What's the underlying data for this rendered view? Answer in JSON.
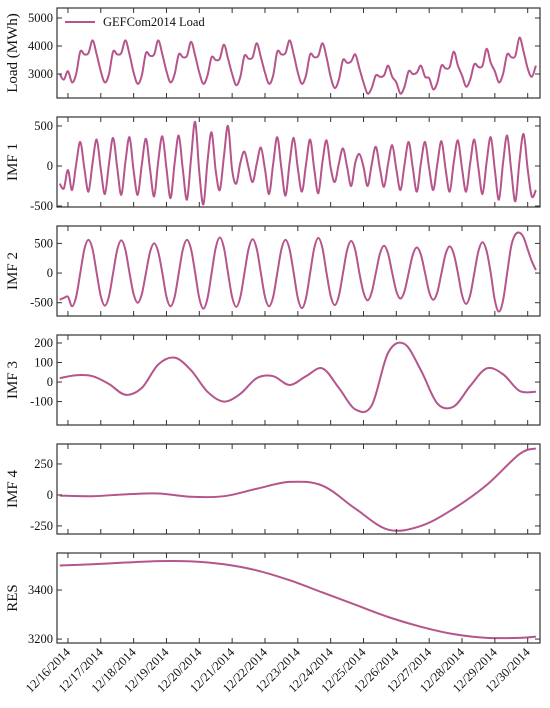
{
  "chart_data": [
    {
      "type": "line",
      "ylabel": "Load (MWh)",
      "legend": "upper left",
      "x": [
        -6,
        -3,
        0,
        3,
        6,
        9,
        12,
        15,
        18,
        21,
        24,
        27,
        30,
        33,
        36,
        39,
        42,
        45,
        48,
        51,
        54,
        57,
        60,
        63,
        66,
        69,
        72,
        75,
        78,
        81,
        84,
        87,
        90,
        93,
        96,
        99,
        102,
        105,
        108,
        111,
        114,
        117,
        120,
        123,
        126,
        129,
        132,
        135,
        138,
        141,
        144,
        147,
        150,
        153,
        156,
        159,
        162,
        165,
        168,
        171,
        174,
        177,
        180,
        183,
        186,
        189,
        192,
        195,
        198,
        201,
        204,
        207,
        210,
        213,
        216,
        219,
        222,
        225,
        228,
        231,
        234,
        237,
        240,
        243,
        246,
        249,
        252,
        255,
        258,
        261,
        264,
        267,
        270,
        273,
        276,
        279,
        282,
        285,
        288,
        291,
        294,
        297,
        300,
        303,
        306,
        309,
        312,
        315,
        318,
        321,
        324,
        327,
        330,
        333,
        336,
        339,
        342
      ],
      "series": [
        {
          "name": "GEFCom2014 Load",
          "color": "#b5558c",
          "values": [
            3000,
            2800,
            3100,
            2700,
            3000,
            3800,
            3700,
            3750,
            4200,
            3700,
            3100,
            2700,
            3000,
            3800,
            3700,
            3750,
            4200,
            3700,
            3050,
            2650,
            2950,
            3750,
            3650,
            3700,
            4200,
            3700,
            3100,
            2700,
            3000,
            3700,
            3600,
            3650,
            4150,
            3650,
            3050,
            2650,
            2950,
            3600,
            3500,
            3550,
            4050,
            3550,
            3000,
            2600,
            2900,
            3650,
            3550,
            3600,
            4100,
            3600,
            3050,
            2650,
            2950,
            3800,
            3700,
            3750,
            4200,
            3700,
            3050,
            2650,
            2950,
            3700,
            3600,
            3650,
            4100,
            3600,
            2900,
            2500,
            2800,
            3500,
            3400,
            3450,
            3700,
            3200,
            2700,
            2300,
            2500,
            2950,
            2900,
            2950,
            3300,
            2900,
            2700,
            2300,
            2550,
            3100,
            3000,
            3050,
            3300,
            2900,
            2850,
            2450,
            2700,
            3300,
            3200,
            3250,
            3800,
            3300,
            2950,
            2550,
            2800,
            3350,
            3250,
            3300,
            3900,
            3400,
            3100,
            2700,
            3000,
            3700,
            3600,
            3650,
            4300,
            3800,
            3200,
            2900,
            3300
          ]
        }
      ],
      "ylim": [
        2143,
        5357
      ],
      "yticks": [
        3000,
        4000,
        5000
      ]
    },
    {
      "type": "line",
      "ylabel": "IMF 1",
      "color": "#b5558c",
      "x": [
        -6,
        -3,
        0,
        3,
        6,
        9,
        12,
        15,
        18,
        21,
        24,
        27,
        30,
        33,
        36,
        39,
        42,
        45,
        48,
        51,
        54,
        57,
        60,
        63,
        66,
        69,
        72,
        75,
        78,
        81,
        84,
        87,
        90,
        93,
        96,
        99,
        102,
        105,
        108,
        111,
        114,
        117,
        120,
        123,
        126,
        129,
        132,
        135,
        138,
        141,
        144,
        147,
        150,
        153,
        156,
        159,
        162,
        165,
        168,
        171,
        174,
        177,
        180,
        183,
        186,
        189,
        192,
        195,
        198,
        201,
        204,
        207,
        210,
        213,
        216,
        219,
        222,
        225,
        228,
        231,
        234,
        237,
        240,
        243,
        246,
        249,
        252,
        255,
        258,
        261,
        264,
        267,
        270,
        273,
        276,
        279,
        282,
        285,
        288,
        291,
        294,
        297,
        300,
        303,
        306,
        309,
        312,
        315,
        318,
        321,
        324,
        327,
        330,
        333,
        336,
        339,
        342
      ],
      "values": [
        -220,
        -280,
        -50,
        -300,
        20,
        300,
        -30,
        -320,
        40,
        330,
        -40,
        -350,
        30,
        350,
        -20,
        -360,
        50,
        360,
        -60,
        -360,
        20,
        340,
        -40,
        -380,
        60,
        370,
        -30,
        -400,
        40,
        380,
        -50,
        -420,
        100,
        550,
        -80,
        -480,
        60,
        420,
        -60,
        -300,
        120,
        500,
        -50,
        -220,
        40,
        180,
        -20,
        -200,
        30,
        230,
        -40,
        -350,
        30,
        360,
        -30,
        -370,
        40,
        350,
        -30,
        -320,
        20,
        330,
        -40,
        -340,
        50,
        320,
        -20,
        -200,
        30,
        220,
        -10,
        -250,
        40,
        150,
        -10,
        -250,
        20,
        240,
        -30,
        -260,
        30,
        260,
        -40,
        -300,
        20,
        300,
        -20,
        -320,
        40,
        300,
        -30,
        -300,
        30,
        310,
        -40,
        -320,
        50,
        320,
        -30,
        -320,
        40,
        330,
        -30,
        -350,
        50,
        360,
        -50,
        -420,
        40,
        380,
        -60,
        -440,
        60,
        400,
        -40,
        -380,
        -300
      ],
      "ylim": [
        -512,
        612
      ],
      "yticks": [
        -500,
        0,
        500
      ]
    },
    {
      "type": "line",
      "ylabel": "IMF 2",
      "color": "#b5558c",
      "x": [
        -6,
        -3,
        0,
        3,
        6,
        9,
        12,
        15,
        18,
        21,
        24,
        27,
        30,
        33,
        36,
        39,
        42,
        45,
        48,
        51,
        54,
        57,
        60,
        63,
        66,
        69,
        72,
        75,
        78,
        81,
        84,
        87,
        90,
        93,
        96,
        99,
        102,
        105,
        108,
        111,
        114,
        117,
        120,
        123,
        126,
        129,
        132,
        135,
        138,
        141,
        144,
        147,
        150,
        153,
        156,
        159,
        162,
        165,
        168,
        171,
        174,
        177,
        180,
        183,
        186,
        189,
        192,
        195,
        198,
        201,
        204,
        207,
        210,
        213,
        216,
        219,
        222,
        225,
        228,
        231,
        234,
        237,
        240,
        243,
        246,
        249,
        252,
        255,
        258,
        261,
        264,
        267,
        270,
        273,
        276,
        279,
        282,
        285,
        288,
        291,
        294,
        297,
        300,
        303,
        306,
        309,
        312,
        315,
        318,
        321,
        324,
        327,
        330,
        333,
        336,
        339,
        342
      ],
      "values": [
        -450,
        -420,
        -400,
        -560,
        -400,
        0,
        400,
        560,
        400,
        0,
        -390,
        -550,
        -390,
        0,
        390,
        550,
        390,
        0,
        -355,
        -500,
        -355,
        0,
        355,
        500,
        355,
        0,
        -400,
        -560,
        -400,
        0,
        400,
        560,
        400,
        0,
        -425,
        -600,
        -425,
        0,
        425,
        600,
        425,
        0,
        -405,
        -570,
        -405,
        0,
        405,
        570,
        405,
        0,
        -400,
        -560,
        -400,
        0,
        400,
        560,
        400,
        0,
        -420,
        -590,
        -420,
        0,
        420,
        590,
        420,
        0,
        -385,
        -540,
        -385,
        0,
        385,
        540,
        385,
        0,
        -325,
        -460,
        -325,
        0,
        325,
        460,
        325,
        0,
        -305,
        -430,
        -305,
        0,
        305,
        430,
        305,
        0,
        -320,
        -450,
        -320,
        0,
        320,
        450,
        320,
        0,
        -370,
        -520,
        -370,
        0,
        370,
        520,
        370,
        0,
        -460,
        -650,
        -460,
        0,
        460,
        650,
        680,
        600,
        400,
        200,
        50
      ],
      "ylim": [
        -724,
        793
      ],
      "yticks": [
        -500,
        0,
        500
      ]
    },
    {
      "type": "line",
      "ylabel": "IMF 3",
      "color": "#b5558c",
      "x": [
        -6,
        6,
        18,
        30,
        42,
        54,
        66,
        78,
        90,
        102,
        114,
        126,
        138,
        150,
        162,
        174,
        186,
        198,
        210,
        222,
        234,
        246,
        258,
        270,
        282,
        294,
        306,
        318,
        330,
        342
      ],
      "values": [
        20,
        35,
        30,
        -10,
        -65,
        -30,
        90,
        125,
        60,
        -50,
        -100,
        -60,
        20,
        30,
        -15,
        30,
        70,
        -30,
        -140,
        -120,
        150,
        195,
        60,
        -110,
        -125,
        -20,
        70,
        40,
        -45,
        -50
      ],
      "ylim": [
        -220,
        241
      ],
      "yticks": [
        -100,
        0,
        100,
        200
      ]
    },
    {
      "type": "line",
      "ylabel": "IMF 4",
      "color": "#b5558c",
      "x": [
        -6,
        18,
        42,
        66,
        90,
        114,
        138,
        162,
        186,
        210,
        234,
        258,
        282,
        306,
        330,
        342
      ],
      "values": [
        -5,
        -10,
        5,
        12,
        -15,
        -10,
        50,
        105,
        75,
        -110,
        -280,
        -250,
        -110,
        80,
        330,
        375
      ],
      "ylim": [
        -315,
        411
      ],
      "yticks": [
        -250,
        0,
        250
      ]
    },
    {
      "type": "line",
      "ylabel": "RES",
      "color": "#b5558c",
      "x": [
        -6,
        18,
        42,
        66,
        90,
        114,
        138,
        162,
        186,
        210,
        234,
        258,
        282,
        306,
        330,
        342
      ],
      "values": [
        3500,
        3505,
        3512,
        3518,
        3517,
        3505,
        3480,
        3440,
        3390,
        3340,
        3290,
        3250,
        3220,
        3205,
        3205,
        3210
      ],
      "ylim": [
        3184,
        3551
      ],
      "yticks": [
        3200,
        3400
      ],
      "xlim": [
        -8,
        345
      ],
      "xticks": [
        {
          "value": 0,
          "label": "12/16/2014"
        },
        {
          "value": 24,
          "label": "12/17/2014"
        },
        {
          "value": 48,
          "label": "12/18/2014"
        },
        {
          "value": 72,
          "label": "12/19/2014"
        },
        {
          "value": 96,
          "label": "12/20/2014"
        },
        {
          "value": 120,
          "label": "12/21/2014"
        },
        {
          "value": 144,
          "label": "12/22/2014"
        },
        {
          "value": 168,
          "label": "12/23/2014"
        },
        {
          "value": 192,
          "label": "12/24/2014"
        },
        {
          "value": 216,
          "label": "12/25/2014"
        },
        {
          "value": 240,
          "label": "12/26/2014"
        },
        {
          "value": 264,
          "label": "12/27/2014"
        },
        {
          "value": 288,
          "label": "12/28/2014"
        },
        {
          "value": 312,
          "label": "12/29/2014"
        },
        {
          "value": 336,
          "label": "12/30/2014"
        }
      ]
    }
  ]
}
